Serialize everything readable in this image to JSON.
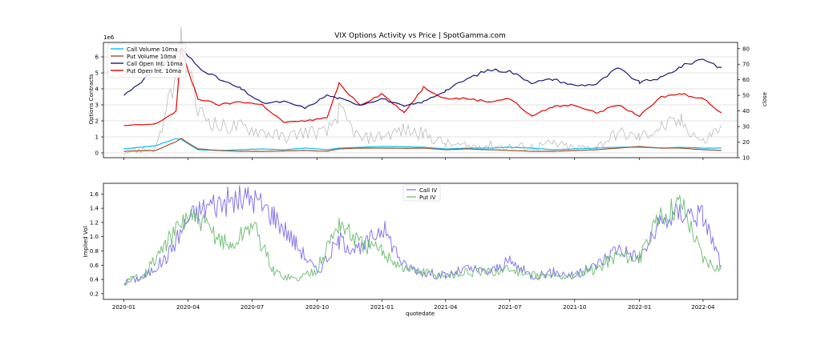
{
  "chart_data": [
    {
      "type": "line",
      "title": "VIX Options Activity vs Price  | SpotGamma.com",
      "ylabel": "Options Contracts",
      "ylabel_right": "close",
      "y_multiplier": "1e6",
      "ylim": [
        -0.3,
        6.9
      ],
      "ylim_right": [
        10,
        84
      ],
      "yticks": [
        "0",
        "1",
        "2",
        "3",
        "4",
        "5",
        "6"
      ],
      "yticks_right": [
        "10",
        "20",
        "30",
        "40",
        "50",
        "60",
        "70",
        "80"
      ],
      "legend": "top-left",
      "x": [
        "2020-01-01",
        "2020-02-15",
        "2020-03-15",
        "2020-03-22",
        "2020-04-15",
        "2020-05-15",
        "2020-06-15",
        "2020-07-15",
        "2020-08-15",
        "2020-09-15",
        "2020-10-15",
        "2020-11-01",
        "2020-12-01",
        "2021-01-01",
        "2021-02-01",
        "2021-03-01",
        "2021-04-01",
        "2021-05-01",
        "2021-06-01",
        "2021-07-01",
        "2021-08-01",
        "2021-09-01",
        "2021-10-01",
        "2021-11-01",
        "2021-12-01",
        "2022-01-01",
        "2022-02-01",
        "2022-03-01",
        "2022-04-01",
        "2022-04-27"
      ],
      "series": [
        {
          "name": "Call Volume 10ma",
          "color": "#00bfff",
          "axis": "left",
          "values": [
            0.25,
            0.45,
            0.9,
            0.85,
            0.2,
            0.15,
            0.2,
            0.25,
            0.2,
            0.3,
            0.2,
            0.3,
            0.35,
            0.4,
            0.38,
            0.35,
            0.25,
            0.3,
            0.3,
            0.35,
            0.3,
            0.2,
            0.25,
            0.3,
            0.35,
            0.35,
            0.3,
            0.35,
            0.3,
            0.3
          ]
        },
        {
          "name": "Put Volume 10ma",
          "color": "#a0522d",
          "axis": "left",
          "values": [
            0.1,
            0.15,
            0.7,
            0.9,
            0.25,
            0.15,
            0.1,
            0.1,
            0.12,
            0.15,
            0.1,
            0.25,
            0.3,
            0.3,
            0.28,
            0.3,
            0.2,
            0.25,
            0.2,
            0.15,
            0.1,
            0.1,
            0.15,
            0.2,
            0.3,
            0.4,
            0.3,
            0.3,
            0.2,
            0.15
          ]
        },
        {
          "name": "Call Open Int. 10ma",
          "color": "#191970",
          "axis": "left",
          "values": [
            3.6,
            5.2,
            6.2,
            6.5,
            5.4,
            4.6,
            4.0,
            3.1,
            3.2,
            2.8,
            3.6,
            3.4,
            3.0,
            3.4,
            2.9,
            3.2,
            3.9,
            4.6,
            5.2,
            5.1,
            4.4,
            4.6,
            4.2,
            4.3,
            5.3,
            4.4,
            4.7,
            5.4,
            5.9,
            5.3
          ]
        },
        {
          "name": "Put Open Int. 10ma",
          "color": "#e60000",
          "axis": "left",
          "values": [
            1.7,
            1.8,
            2.6,
            6.4,
            3.4,
            3.0,
            3.2,
            3.0,
            1.9,
            2.0,
            2.2,
            4.3,
            3.0,
            3.7,
            2.5,
            4.1,
            3.4,
            3.4,
            3.2,
            3.4,
            2.3,
            2.9,
            3.0,
            2.5,
            3.0,
            2.3,
            3.5,
            3.7,
            3.4,
            2.5
          ]
        },
        {
          "name": "close",
          "color": "#bbbbbb",
          "axis": "right",
          "values": [
            14,
            16,
            60,
            82,
            40,
            30,
            30,
            27,
            23,
            27,
            26,
            40,
            22,
            24,
            28,
            25,
            19,
            17,
            18,
            17,
            17,
            19,
            16,
            17,
            26,
            23,
            30,
            33,
            20,
            31
          ]
        }
      ]
    },
    {
      "type": "line",
      "ylabel": "Implied Vol",
      "xlabel": "quotedate",
      "ylim": [
        0.12,
        1.75
      ],
      "yticks": [
        "0.2",
        "0.4",
        "0.6",
        "0.8",
        "1.0",
        "1.2",
        "1.4",
        "1.6"
      ],
      "xticks": [
        "2020-01",
        "2020-04",
        "2020-07",
        "2020-10",
        "2021-01",
        "2021-04",
        "2021-07",
        "2021-10",
        "2022-01",
        "2022-04"
      ],
      "legend": "top-center",
      "x": [
        "2020-01-01",
        "2020-02-01",
        "2020-03-01",
        "2020-04-01",
        "2020-05-01",
        "2020-06-01",
        "2020-07-01",
        "2020-08-01",
        "2020-09-01",
        "2020-10-01",
        "2020-11-01",
        "2020-12-01",
        "2021-01-01",
        "2021-02-01",
        "2021-03-01",
        "2021-04-01",
        "2021-05-01",
        "2021-06-01",
        "2021-07-01",
        "2021-08-01",
        "2021-09-01",
        "2021-10-01",
        "2021-11-01",
        "2021-12-01",
        "2022-01-01",
        "2022-02-01",
        "2022-03-01",
        "2022-04-01",
        "2022-04-27"
      ],
      "series": [
        {
          "name": "Call IV",
          "color": "#7b68ee",
          "values": [
            0.35,
            0.45,
            0.7,
            1.25,
            1.45,
            1.5,
            1.55,
            1.3,
            0.9,
            0.5,
            0.95,
            0.8,
            1.15,
            0.6,
            0.5,
            0.45,
            0.55,
            0.5,
            0.65,
            0.45,
            0.5,
            0.45,
            0.6,
            0.85,
            0.7,
            1.2,
            1.35,
            1.3,
            0.6
          ]
        },
        {
          "name": "Put IV",
          "color": "#66bb6a",
          "values": [
            0.35,
            0.5,
            0.9,
            1.3,
            1.1,
            0.85,
            1.2,
            0.5,
            0.4,
            0.55,
            1.2,
            0.9,
            0.8,
            0.55,
            0.5,
            0.45,
            0.5,
            0.5,
            0.55,
            0.45,
            0.45,
            0.45,
            0.55,
            0.75,
            0.7,
            1.3,
            1.5,
            0.7,
            0.55
          ]
        }
      ]
    }
  ]
}
